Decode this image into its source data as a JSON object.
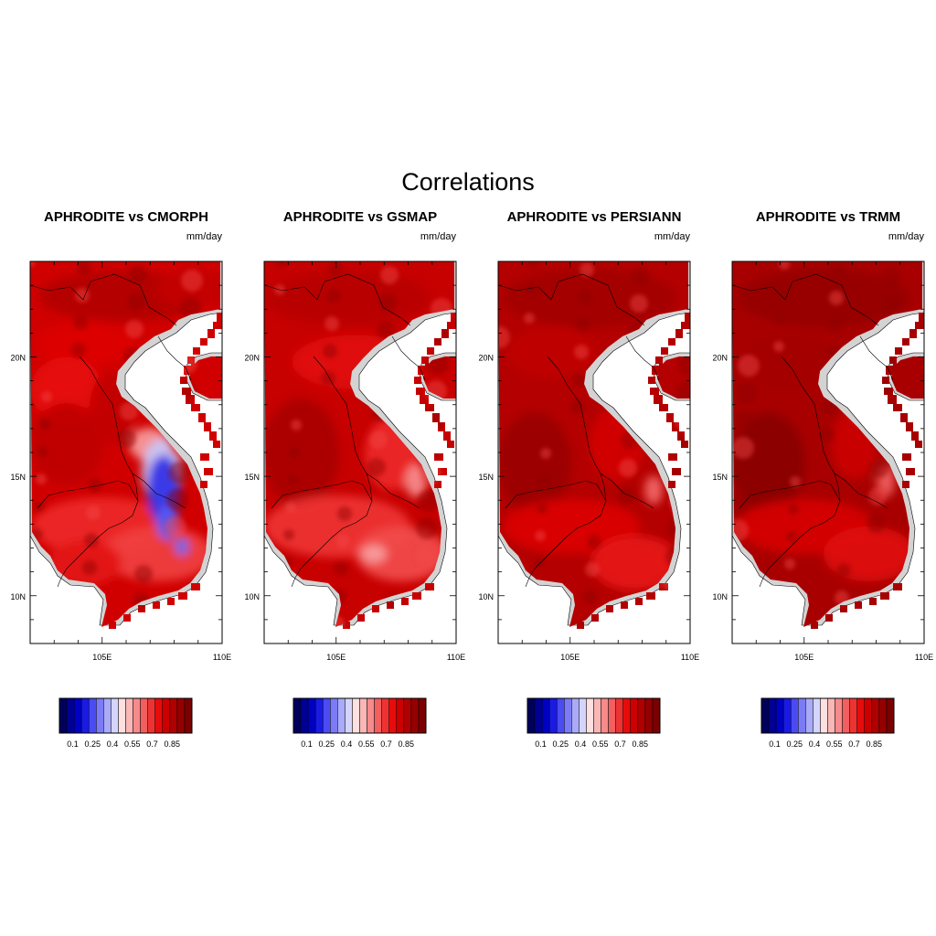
{
  "figure": {
    "title": "Correlations",
    "panels": [
      {
        "title": "APHRODITE vs CMORPH",
        "units": "mm/day",
        "variant": "cmorph"
      },
      {
        "title": "APHRODITE vs GSMAP",
        "units": "mm/day",
        "variant": "gsmap"
      },
      {
        "title": "APHRODITE vs PERSIANN",
        "units": "mm/day",
        "variant": "persiann"
      },
      {
        "title": "APHRODITE vs TRMM",
        "units": "mm/day",
        "variant": "trmm"
      }
    ],
    "lat_ticks": [
      {
        "value": 20,
        "label": "20N"
      },
      {
        "value": 15,
        "label": "15N"
      },
      {
        "value": 10,
        "label": "10N"
      }
    ],
    "lon_ticks": [
      {
        "value": 105,
        "label": "105E"
      },
      {
        "value": 110,
        "label": "110E"
      }
    ],
    "lat_range": [
      8,
      24
    ],
    "lon_range": [
      102,
      110
    ],
    "colorbar": {
      "labels": [
        "0.1",
        "0.25",
        "0.4",
        "0.55",
        "0.7",
        "0.85"
      ],
      "label_values": [
        0.1,
        0.25,
        0.4,
        0.55,
        0.7,
        0.85
      ],
      "range": [
        0,
        1
      ],
      "colors": [
        "#00005c",
        "#000094",
        "#0000c4",
        "#1a1ae6",
        "#4b4bf2",
        "#7b7bf7",
        "#aaaafa",
        "#d4d4fd",
        "#fde0e0",
        "#fbb6b6",
        "#f78a8a",
        "#f35e5e",
        "#ee3232",
        "#e60c0c",
        "#cc0000",
        "#b00000",
        "#950000",
        "#7b0000"
      ]
    }
  }
}
